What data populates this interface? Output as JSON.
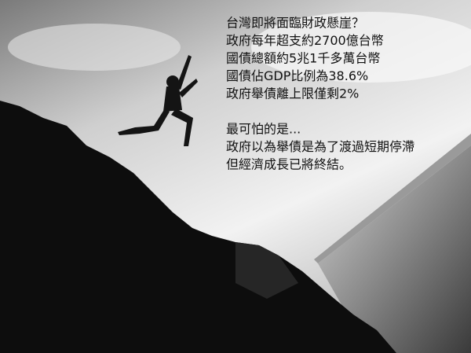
{
  "caption": {
    "paragraphs": [
      [
        "台灣即將面臨財政懸崖？",
        "政府每年超支約2700億台幣",
        "國債總額約5兆1千多萬台幣",
        "國債佔GDP比例為38.6%",
        "政府舉債離上限僅剩2%"
      ],
      [
        "最可怕的是...",
        "政府以為舉債是為了渡過短期停滯",
        "但經濟成長已將終結。"
      ]
    ]
  }
}
